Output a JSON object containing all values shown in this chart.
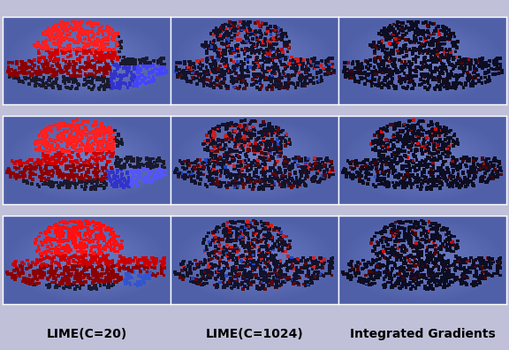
{
  "col_labels": [
    "LIME(C=20)",
    "LIME(C=1024)",
    "Integrated Gradients"
  ],
  "bg_color": "#5060A8",
  "outer_bg": "#C0C0D8",
  "label_fontsize": 10,
  "n_points": 900,
  "rows": 3,
  "cols": 3,
  "dot_size": 7
}
